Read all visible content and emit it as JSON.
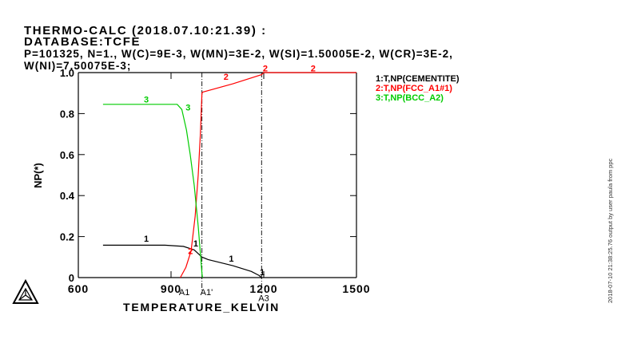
{
  "header": {
    "line1": "THERMO-CALC (2018.07.10:21.39) :",
    "line2": "DATABASE:TCFE",
    "line3": "P=101325, N=1., W(C)=9E-3, W(MN)=3E-2, W(SI)=1.50005E-2, W(CR)=3E-2,",
    "line4": "W(NI)=7.50075E-3;"
  },
  "side_note": "2018-07-10 21:38:25.76 output by user paula from ppc",
  "logo": "thermo-calc-triangle-logo",
  "colors": {
    "cementite": "#000000",
    "fcc": "#ff0000",
    "bcc": "#00cc00",
    "axes": "#000000"
  },
  "chart_data": {
    "type": "line",
    "xlabel": "TEMPERATURE_KELVIN",
    "ylabel": "NP(*)",
    "xlim": [
      600,
      1500
    ],
    "ylim": [
      0,
      1.0
    ],
    "xticks": [
      600,
      900,
      1200,
      1500
    ],
    "yticks": [
      0,
      0.2,
      0.4,
      0.6,
      0.8,
      1.0
    ],
    "xtick_labels": [
      "600",
      "900",
      "1200",
      "1500"
    ],
    "ytick_labels": [
      "0",
      "0.2",
      "0.4",
      "0.6",
      "0.8",
      "1.0"
    ],
    "legend": [
      "1:T,NP(CEMENTITE)",
      "2:T,NP(FCC_A1#1)",
      "3:T,NP(BCC_A2)"
    ],
    "series": [
      {
        "name": "1:T,NP(CEMENTITE)",
        "label": "1",
        "color": "#000000",
        "points": [
          [
            680,
            0.158
          ],
          [
            880,
            0.158
          ],
          [
            940,
            0.152
          ],
          [
            975,
            0.135
          ],
          [
            1000,
            0.1
          ],
          [
            1020,
            0.088
          ],
          [
            1100,
            0.058
          ],
          [
            1160,
            0.03
          ],
          [
            1185,
            0.01
          ],
          [
            1193,
            0.0
          ]
        ]
      },
      {
        "name": "2:T,NP(FCC_A1#1)",
        "label": "2",
        "color": "#ff0000",
        "points": [
          [
            930,
            0.0
          ],
          [
            948,
            0.05
          ],
          [
            965,
            0.13
          ],
          [
            978,
            0.3
          ],
          [
            988,
            0.5
          ],
          [
            995,
            0.7
          ],
          [
            1000,
            0.9
          ],
          [
            1003,
            0.905
          ],
          [
            1100,
            0.945
          ],
          [
            1193,
            0.99
          ],
          [
            1200,
            1.0
          ],
          [
            1500,
            1.0
          ]
        ]
      },
      {
        "name": "3:T,NP(BCC_A2)",
        "label": "3",
        "color": "#00cc00",
        "points": [
          [
            680,
            0.845
          ],
          [
            920,
            0.845
          ],
          [
            935,
            0.82
          ],
          [
            950,
            0.72
          ],
          [
            962,
            0.6
          ],
          [
            975,
            0.45
          ],
          [
            988,
            0.25
          ],
          [
            995,
            0.12
          ],
          [
            1000,
            0.02
          ],
          [
            1002,
            0.0
          ]
        ]
      }
    ],
    "curve_labels": [
      {
        "text": "1",
        "x": 820,
        "y": 0.175,
        "color": "#000000"
      },
      {
        "text": "1",
        "x": 980,
        "y": 0.152,
        "color": "#000000"
      },
      {
        "text": "1",
        "x": 1095,
        "y": 0.078,
        "color": "#000000"
      },
      {
        "text": "1",
        "x": 1195,
        "y": 0.012,
        "color": "#000000"
      },
      {
        "text": "2",
        "x": 963,
        "y": 0.115,
        "color": "#ff0000"
      },
      {
        "text": "2",
        "x": 1078,
        "y": 0.965,
        "color": "#ff0000"
      },
      {
        "text": "2",
        "x": 1205,
        "y": 1.005,
        "color": "#ff0000"
      },
      {
        "text": "2",
        "x": 1360,
        "y": 1.005,
        "color": "#ff0000"
      },
      {
        "text": "3",
        "x": 820,
        "y": 0.855,
        "color": "#00cc00"
      },
      {
        "text": "3",
        "x": 955,
        "y": 0.815,
        "color": "#00cc00"
      }
    ],
    "reference_lines": [
      {
        "x": 1000,
        "label": "A1'"
      },
      {
        "x": 1193,
        "label": "A3"
      }
    ],
    "annotations": [
      {
        "text": "A1",
        "x": 943,
        "y": -0.085
      },
      {
        "text": "A1'",
        "x": 1015,
        "y": -0.085
      },
      {
        "text": "A3",
        "x": 1200,
        "y": -0.115
      }
    ]
  }
}
